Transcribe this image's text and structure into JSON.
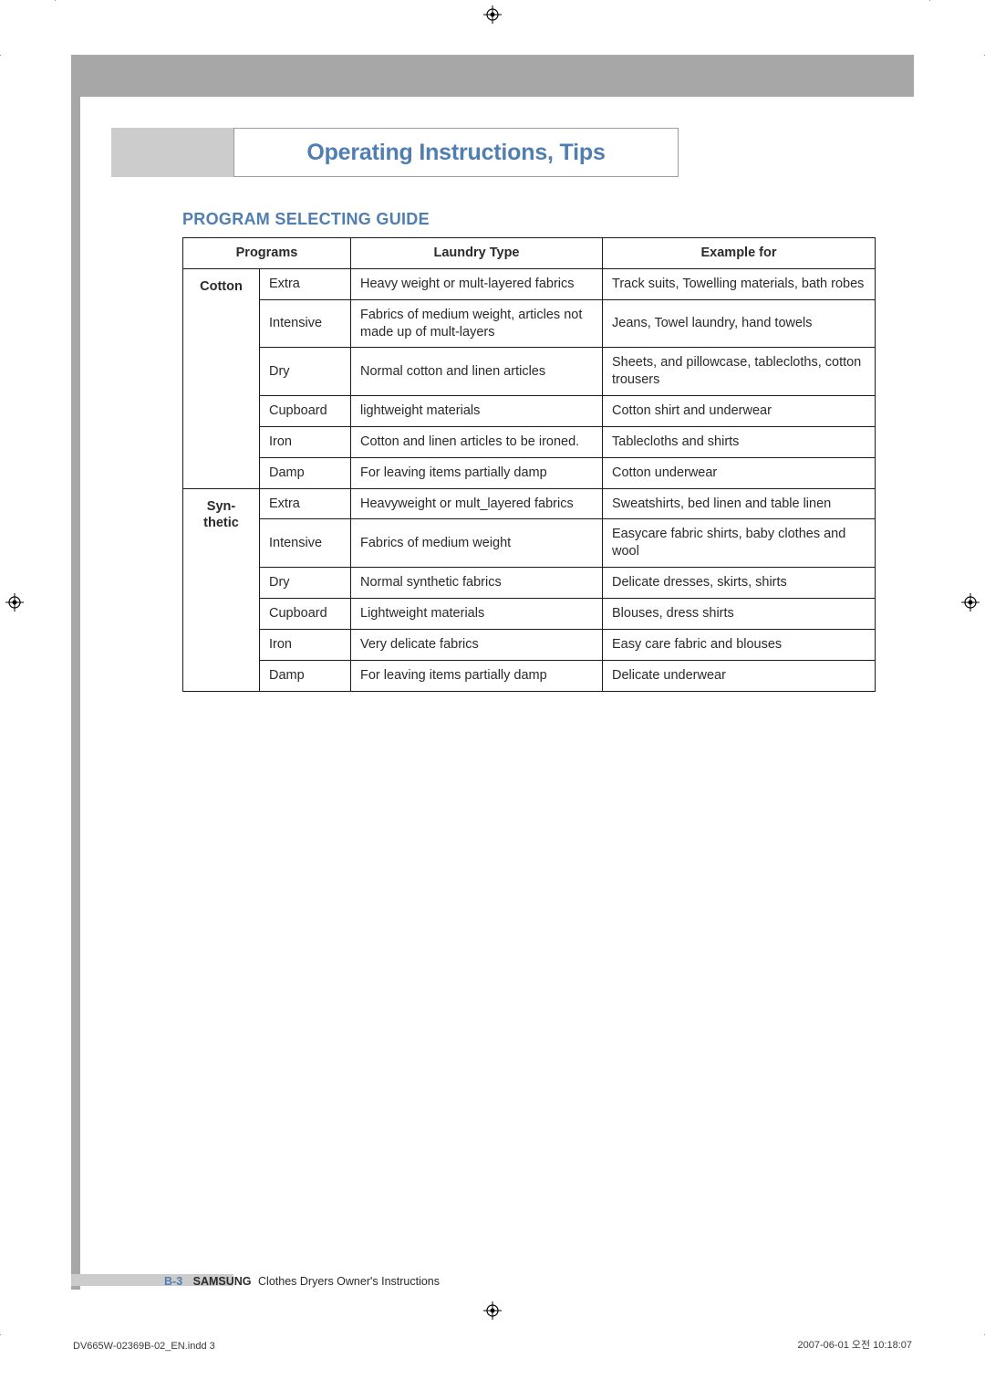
{
  "title": "Operating Instructions, Tips",
  "section": "PROGRAM SELECTING GUIDE",
  "headers": {
    "c1": "Programs",
    "c2": "Laundry Type",
    "c3": "Example for"
  },
  "groups": [
    {
      "name": "Cotton",
      "rows": [
        {
          "p": "Extra",
          "t": "Heavy weight or mult-layered fabrics",
          "e": "Track suits, Towelling materials, bath robes"
        },
        {
          "p": "Intensive",
          "t": "Fabrics of medium weight, articles not made up of mult-layers",
          "e": "Jeans, Towel laundry, hand towels"
        },
        {
          "p": "Dry",
          "t": "Normal cotton and linen articles",
          "e": "Sheets, and pillowcase, tablecloths, cotton trousers"
        },
        {
          "p": "Cupboard",
          "t": "lightweight materials",
          "e": "Cotton shirt and underwear"
        },
        {
          "p": "Iron",
          "t": "Cotton and linen articles to be ironed.",
          "e": "Tablecloths and shirts"
        },
        {
          "p": "Damp",
          "t": "For leaving items partially damp",
          "e": "Cotton underwear"
        }
      ]
    },
    {
      "name": "Syn-thetic",
      "rows": [
        {
          "p": "Extra",
          "t": "Heavyweight or mult_layered fabrics",
          "e": "Sweatshirts, bed linen and table linen"
        },
        {
          "p": "Intensive",
          "t": "Fabrics of medium weight",
          "e": "Easycare fabric shirts, baby clothes and wool"
        },
        {
          "p": "Dry",
          "t": "Normal synthetic fabrics",
          "e": "Delicate dresses, skirts, shirts"
        },
        {
          "p": "Cupboard",
          "t": "Lightweight materials",
          "e": "Blouses, dress shirts"
        },
        {
          "p": "Iron",
          "t": "Very delicate fabrics",
          "e": "Easy care fabric and blouses"
        },
        {
          "p": "Damp",
          "t": "For leaving items partially damp",
          "e": "Delicate underwear"
        }
      ]
    }
  ],
  "footer": {
    "page": "B-3",
    "brand": "SAMSUNG",
    "text": "Clothes Dryers Owner's Instructions"
  },
  "meta": {
    "file": "DV665W-02369B-02_EN.indd   3",
    "date": "2007-06-01   오전 10:18:07"
  },
  "colors": {
    "accent": "#517eb0",
    "bar": "#a7a7a7",
    "tab": "#cccccc",
    "border": "#1a1a1a"
  }
}
